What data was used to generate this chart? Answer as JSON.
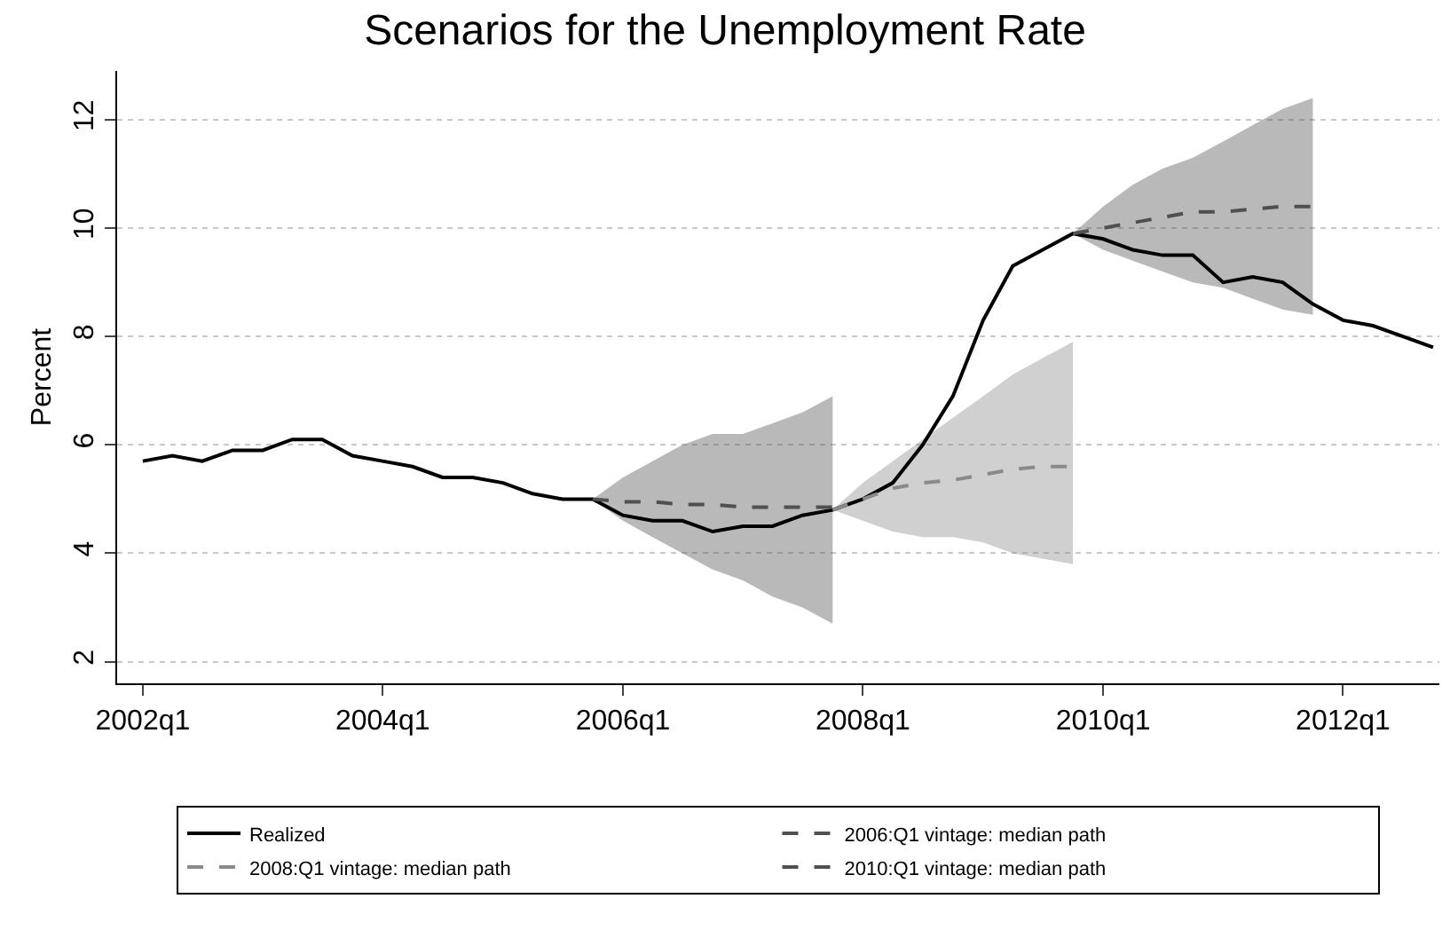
{
  "chart_data": {
    "type": "line",
    "title": "Scenarios for the Unemployment Rate",
    "ylabel": "Percent",
    "xlim": [
      "2001-10-15",
      "2012-10-20"
    ],
    "xticks": [
      {
        "value": "2002-01",
        "label": "2002q1"
      },
      {
        "value": "2004-01",
        "label": "2004q1"
      },
      {
        "value": "2006-01",
        "label": "2006q1"
      },
      {
        "value": "2008-01",
        "label": "2008q1"
      },
      {
        "value": "2010-01",
        "label": "2010q1"
      },
      {
        "value": "2012-01",
        "label": "2012q1"
      }
    ],
    "ylim": [
      1.6,
      12.9
    ],
    "yticks": [
      2,
      4,
      6,
      8,
      10,
      12
    ],
    "grid": "y",
    "legend": "bottom",
    "series": [
      {
        "name": "Realized",
        "color": "#000000",
        "line_style": "solid",
        "x": [
          "2002-01",
          "2002-04",
          "2002-07",
          "2002-10",
          "2003-01",
          "2003-04",
          "2003-07",
          "2003-10",
          "2004-01",
          "2004-04",
          "2004-07",
          "2004-10",
          "2005-01",
          "2005-04",
          "2005-07",
          "2005-10",
          "2006-01",
          "2006-04",
          "2006-07",
          "2006-10",
          "2007-01",
          "2007-04",
          "2007-07",
          "2007-10",
          "2008-01",
          "2008-04",
          "2008-07",
          "2008-10",
          "2009-01",
          "2009-04",
          "2009-07",
          "2009-10",
          "2010-01",
          "2010-04",
          "2010-07",
          "2010-10",
          "2011-01",
          "2011-04",
          "2011-07",
          "2011-10",
          "2012-01",
          "2012-04",
          "2012-07",
          "2012-10"
        ],
        "values": [
          5.7,
          5.8,
          5.7,
          5.9,
          5.9,
          6.1,
          6.1,
          5.8,
          5.7,
          5.6,
          5.4,
          5.4,
          5.3,
          5.1,
          5.0,
          5.0,
          4.7,
          4.6,
          4.6,
          4.4,
          4.5,
          4.5,
          4.7,
          4.8,
          5.0,
          5.3,
          6.0,
          6.9,
          8.3,
          9.3,
          9.6,
          9.9,
          9.8,
          9.6,
          9.5,
          9.5,
          9.0,
          9.1,
          9.0,
          8.6,
          8.3,
          8.2,
          8.0,
          7.8
        ]
      },
      {
        "name": "2006:Q1 vintage: median path",
        "color": "#505050",
        "line_style": "dashed",
        "x": [
          "2005-10",
          "2006-01",
          "2006-04",
          "2006-07",
          "2006-10",
          "2007-01",
          "2007-04",
          "2007-07",
          "2007-10"
        ],
        "values": [
          5.0,
          4.95,
          4.95,
          4.9,
          4.9,
          4.85,
          4.85,
          4.85,
          4.85
        ],
        "upper": [
          5.0,
          5.4,
          5.7,
          6.0,
          6.2,
          6.2,
          6.4,
          6.6,
          6.9
        ],
        "lower": [
          5.0,
          4.6,
          4.3,
          4.0,
          3.7,
          3.5,
          3.2,
          3.0,
          2.7
        ]
      },
      {
        "name": "2008:Q1 vintage: median path",
        "color": "#8a8a8a",
        "line_style": "dashed",
        "x": [
          "2007-10",
          "2008-01",
          "2008-04",
          "2008-07",
          "2008-10",
          "2009-01",
          "2009-04",
          "2009-07",
          "2009-10"
        ],
        "values": [
          4.8,
          5.0,
          5.2,
          5.3,
          5.35,
          5.45,
          5.55,
          5.6,
          5.6
        ],
        "upper": [
          4.8,
          5.3,
          5.7,
          6.1,
          6.5,
          6.9,
          7.3,
          7.6,
          7.9
        ],
        "lower": [
          4.8,
          4.6,
          4.4,
          4.3,
          4.3,
          4.2,
          4.0,
          3.9,
          3.8
        ]
      },
      {
        "name": "2010:Q1 vintage: median path",
        "color": "#505050",
        "line_style": "dashed",
        "x": [
          "2009-10",
          "2010-01",
          "2010-04",
          "2010-07",
          "2010-10",
          "2011-01",
          "2011-04",
          "2011-07",
          "2011-10"
        ],
        "values": [
          9.9,
          10.0,
          10.1,
          10.2,
          10.3,
          10.3,
          10.35,
          10.4,
          10.4
        ],
        "upper": [
          9.9,
          10.4,
          10.8,
          11.1,
          11.3,
          11.6,
          11.9,
          12.2,
          12.4
        ],
        "lower": [
          9.9,
          9.6,
          9.4,
          9.2,
          9.0,
          8.9,
          8.7,
          8.5,
          8.4
        ]
      }
    ]
  }
}
